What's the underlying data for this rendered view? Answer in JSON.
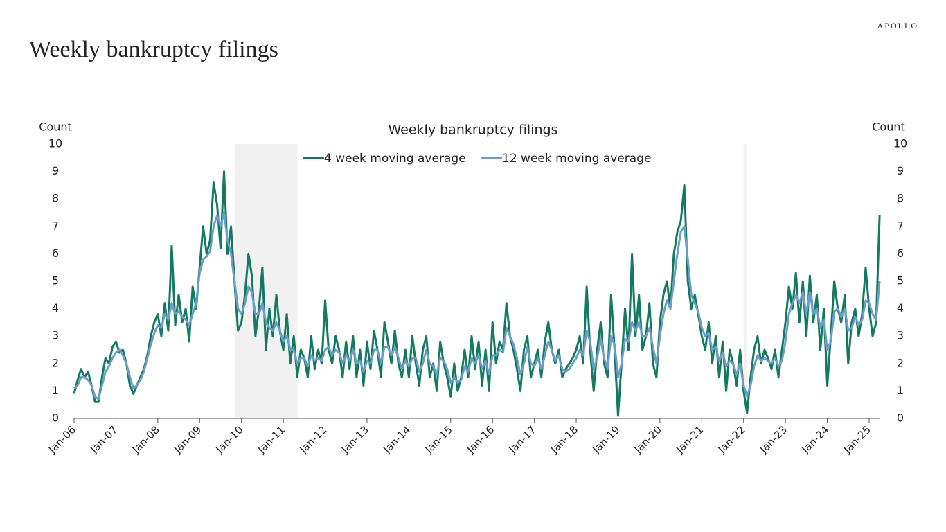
{
  "header": {
    "brand": "APOLLO",
    "title": "Weekly bankruptcy filings"
  },
  "chart_data": {
    "type": "line",
    "title": "Weekly bankruptcy filings",
    "y_label": "Count",
    "y2_label": "Count",
    "x": [
      "Jan-06",
      "Feb-06",
      "Mar-06",
      "Apr-06",
      "May-06",
      "Jun-06",
      "Jul-06",
      "Aug-06",
      "Sep-06",
      "Oct-06",
      "Nov-06",
      "Dec-06",
      "Jan-07",
      "Feb-07",
      "Mar-07",
      "Apr-07",
      "May-07",
      "Jun-07",
      "Jul-07",
      "Aug-07",
      "Sep-07",
      "Oct-07",
      "Nov-07",
      "Dec-07",
      "Jan-08",
      "Feb-08",
      "Mar-08",
      "Apr-08",
      "May-08",
      "Jun-08",
      "Jul-08",
      "Aug-08",
      "Sep-08",
      "Oct-08",
      "Nov-08",
      "Dec-08",
      "Jan-09",
      "Feb-09",
      "Mar-09",
      "Apr-09",
      "May-09",
      "Jun-09",
      "Jul-09",
      "Aug-09",
      "Sep-09",
      "Oct-09",
      "Nov-09",
      "Dec-09",
      "Jan-10",
      "Feb-10",
      "Mar-10",
      "Apr-10",
      "May-10",
      "Jun-10",
      "Jul-10",
      "Aug-10",
      "Sep-10",
      "Oct-10",
      "Nov-10",
      "Dec-10",
      "Jan-11",
      "Feb-11",
      "Mar-11",
      "Apr-11",
      "May-11",
      "Jun-11",
      "Jul-11",
      "Aug-11",
      "Sep-11",
      "Oct-11",
      "Nov-11",
      "Dec-11",
      "Jan-12",
      "Feb-12",
      "Mar-12",
      "Apr-12",
      "May-12",
      "Jun-12",
      "Jul-12",
      "Aug-12",
      "Sep-12",
      "Oct-12",
      "Nov-12",
      "Dec-12",
      "Jan-13",
      "Feb-13",
      "Mar-13",
      "Apr-13",
      "May-13",
      "Jun-13",
      "Jul-13",
      "Aug-13",
      "Sep-13",
      "Oct-13",
      "Nov-13",
      "Dec-13",
      "Jan-14",
      "Feb-14",
      "Mar-14",
      "Apr-14",
      "May-14",
      "Jun-14",
      "Jul-14",
      "Aug-14",
      "Sep-14",
      "Oct-14",
      "Nov-14",
      "Dec-14",
      "Jan-15",
      "Feb-15",
      "Mar-15",
      "Apr-15",
      "May-15",
      "Jun-15",
      "Jul-15",
      "Aug-15",
      "Sep-15",
      "Oct-15",
      "Nov-15",
      "Dec-15",
      "Jan-16",
      "Feb-16",
      "Mar-16",
      "Apr-16",
      "May-16",
      "Jun-16",
      "Jul-16",
      "Aug-16",
      "Sep-16",
      "Oct-16",
      "Nov-16",
      "Dec-16",
      "Jan-17",
      "Feb-17",
      "Mar-17",
      "Apr-17",
      "May-17",
      "Jun-17",
      "Jul-17",
      "Aug-17",
      "Sep-17",
      "Oct-17",
      "Nov-17",
      "Dec-17",
      "Jan-18",
      "Feb-18",
      "Mar-18",
      "Apr-18",
      "May-18",
      "Jun-18",
      "Jul-18",
      "Aug-18",
      "Sep-18",
      "Oct-18",
      "Nov-18",
      "Dec-18",
      "Jan-19",
      "Feb-19",
      "Mar-19",
      "Apr-19",
      "May-19",
      "Jun-19",
      "Jul-19",
      "Aug-19",
      "Sep-19",
      "Oct-19",
      "Nov-19",
      "Dec-19",
      "Jan-20",
      "Feb-20",
      "Mar-20",
      "Apr-20",
      "May-20",
      "Jun-20",
      "Jul-20",
      "Aug-20",
      "Sep-20",
      "Oct-20",
      "Nov-20",
      "Dec-20",
      "Jan-21",
      "Feb-21",
      "Mar-21",
      "Apr-21",
      "May-21",
      "Jun-21",
      "Jul-21",
      "Aug-21",
      "Sep-21",
      "Oct-21",
      "Nov-21",
      "Dec-21",
      "Jan-22",
      "Feb-22",
      "Mar-22",
      "Apr-22",
      "May-22",
      "Jun-22",
      "Jul-22",
      "Aug-22",
      "Sep-22",
      "Oct-22",
      "Nov-22",
      "Dec-22",
      "Jan-23",
      "Feb-23",
      "Mar-23",
      "Apr-23",
      "May-23",
      "Jun-23",
      "Jul-23",
      "Aug-23",
      "Sep-23",
      "Oct-23",
      "Nov-23",
      "Dec-23",
      "Jan-24",
      "Feb-24",
      "Mar-24",
      "Apr-24",
      "May-24",
      "Jun-24",
      "Jul-24",
      "Aug-24",
      "Sep-24",
      "Oct-24",
      "Nov-24",
      "Dec-24",
      "Jan-25",
      "Feb-25",
      "Mar-25",
      "Apr-25"
    ],
    "xticks": [
      "Jan-06",
      "Jan-07",
      "Jan-08",
      "Jan-09",
      "Jan-10",
      "Jan-11",
      "Jan-12",
      "Jan-13",
      "Jan-14",
      "Jan-15",
      "Jan-16",
      "Jan-17",
      "Jan-18",
      "Jan-19",
      "Jan-20",
      "Jan-21",
      "Jan-22",
      "Jan-23",
      "Jan-24",
      "Jan-25"
    ],
    "ylim": [
      0,
      10
    ],
    "yticks": [
      0,
      1,
      2,
      3,
      4,
      5,
      6,
      7,
      8,
      9,
      10
    ],
    "y2lim": [
      0,
      10
    ],
    "y2ticks": [
      0,
      1,
      2,
      3,
      4,
      5,
      6,
      7,
      8,
      9,
      10
    ],
    "shaded": [
      [
        "Nov-09",
        "May-11"
      ],
      [
        "Jan-22",
        "Feb-22"
      ]
    ],
    "series": [
      {
        "name": "4 week moving average",
        "color": "#127a5e",
        "values": [
          0.9,
          1.4,
          1.8,
          1.5,
          1.7,
          1.2,
          0.6,
          0.6,
          1.5,
          2.2,
          2.0,
          2.6,
          2.8,
          2.4,
          2.5,
          2.0,
          1.2,
          0.9,
          1.2,
          1.5,
          1.8,
          2.3,
          3.0,
          3.5,
          3.8,
          3.0,
          4.2,
          3.2,
          6.3,
          3.4,
          4.5,
          3.5,
          4.0,
          2.8,
          4.8,
          4.0,
          5.5,
          7.0,
          6.0,
          6.5,
          8.6,
          7.8,
          6.2,
          9.0,
          6.0,
          7.0,
          5.0,
          3.2,
          3.5,
          4.5,
          6.0,
          5.2,
          3.0,
          4.0,
          5.5,
          2.5,
          4.0,
          3.0,
          4.5,
          3.2,
          2.5,
          3.8,
          2.0,
          3.0,
          1.5,
          2.5,
          2.2,
          1.5,
          3.0,
          1.8,
          2.5,
          2.0,
          4.3,
          2.5,
          2.0,
          3.0,
          2.5,
          1.5,
          2.8,
          1.8,
          3.0,
          1.5,
          2.5,
          1.2,
          2.8,
          1.8,
          3.2,
          2.5,
          1.5,
          3.5,
          2.8,
          2.0,
          3.2,
          2.0,
          1.5,
          2.5,
          1.5,
          3.0,
          2.0,
          1.2,
          2.5,
          3.0,
          1.5,
          2.0,
          1.0,
          2.8,
          2.0,
          1.5,
          0.8,
          2.0,
          1.0,
          1.5,
          2.5,
          1.5,
          3.0,
          1.8,
          2.8,
          1.2,
          2.5,
          1.0,
          3.5,
          2.0,
          2.8,
          2.5,
          4.2,
          3.0,
          2.5,
          1.8,
          1.0,
          2.5,
          3.0,
          1.5,
          2.0,
          2.5,
          1.5,
          2.8,
          3.5,
          2.5,
          2.0,
          2.5,
          1.5,
          1.8,
          2.0,
          2.2,
          2.5,
          3.0,
          2.0,
          4.8,
          2.5,
          1.0,
          2.5,
          3.5,
          2.0,
          1.5,
          4.5,
          2.5,
          0.1,
          2.0,
          4.0,
          2.5,
          6.0,
          3.0,
          4.5,
          2.5,
          3.0,
          4.2,
          2.0,
          1.5,
          3.5,
          4.5,
          5.0,
          4.0,
          6.0,
          6.8,
          7.2,
          8.5,
          5.0,
          4.0,
          4.5,
          3.8,
          3.0,
          2.5,
          3.5,
          2.0,
          3.0,
          1.5,
          2.8,
          1.0,
          2.5,
          2.0,
          1.2,
          2.5,
          1.0,
          0.2,
          1.5,
          2.5,
          3.0,
          2.0,
          2.5,
          2.2,
          1.8,
          2.5,
          1.5,
          2.5,
          3.5,
          4.8,
          4.0,
          5.3,
          3.5,
          5.0,
          3.0,
          5.2,
          3.5,
          4.5,
          2.5,
          4.0,
          1.2,
          3.0,
          5.0,
          4.0,
          3.5,
          4.5,
          2.0,
          3.5,
          4.0,
          3.0,
          3.8,
          5.5,
          4.0,
          3.0,
          3.5,
          7.4
        ]
      },
      {
        "name": "12 week moving average",
        "color": "#6b9dc8",
        "values": [
          1.1,
          1.2,
          1.5,
          1.5,
          1.4,
          1.2,
          0.8,
          0.7,
          1.2,
          1.7,
          1.9,
          2.2,
          2.4,
          2.5,
          2.3,
          2.0,
          1.5,
          1.1,
          1.2,
          1.4,
          1.7,
          2.2,
          2.7,
          3.1,
          3.4,
          3.3,
          3.8,
          3.6,
          4.2,
          3.8,
          3.9,
          3.7,
          3.6,
          3.4,
          3.8,
          4.2,
          5.3,
          5.8,
          5.9,
          6.1,
          7.0,
          7.4,
          7.0,
          7.5,
          6.5,
          6.0,
          5.0,
          4.0,
          3.8,
          4.2,
          4.8,
          4.6,
          3.8,
          3.8,
          4.2,
          3.5,
          3.3,
          3.2,
          3.5,
          3.2,
          2.8,
          3.0,
          2.5,
          2.5,
          2.0,
          2.2,
          2.2,
          1.9,
          2.3,
          2.1,
          2.2,
          2.1,
          2.5,
          2.6,
          2.3,
          2.5,
          2.4,
          2.0,
          2.3,
          2.1,
          2.5,
          2.0,
          2.1,
          1.7,
          2.1,
          2.0,
          2.5,
          2.5,
          2.0,
          2.6,
          2.6,
          2.3,
          2.6,
          2.2,
          1.8,
          2.1,
          1.9,
          2.2,
          2.2,
          1.7,
          2.0,
          2.5,
          2.0,
          1.9,
          1.6,
          2.2,
          2.1,
          1.8,
          1.3,
          1.5,
          1.3,
          1.4,
          1.9,
          1.7,
          2.2,
          2.0,
          2.3,
          1.8,
          2.1,
          1.6,
          2.3,
          2.3,
          2.5,
          2.4,
          3.3,
          3.0,
          2.7,
          2.2,
          1.6,
          2.0,
          2.6,
          2.0,
          1.9,
          2.2,
          1.8,
          2.3,
          2.8,
          2.5,
          2.1,
          2.3,
          1.8,
          1.7,
          1.8,
          2.0,
          2.2,
          2.5,
          2.3,
          3.2,
          2.8,
          1.8,
          2.2,
          2.9,
          2.2,
          1.8,
          3.0,
          2.7,
          1.5,
          2.0,
          2.9,
          2.8,
          3.5,
          3.2,
          3.5,
          3.0,
          3.0,
          3.3,
          2.6,
          2.0,
          3.0,
          3.8,
          4.3,
          4.0,
          5.0,
          6.0,
          6.8,
          7.0,
          5.8,
          4.5,
          4.2,
          3.9,
          3.3,
          3.0,
          3.1,
          2.5,
          2.6,
          2.1,
          2.4,
          1.9,
          2.1,
          2.0,
          1.6,
          2.0,
          1.2,
          0.8,
          1.2,
          1.9,
          2.3,
          2.1,
          2.2,
          2.1,
          2.0,
          2.2,
          1.9,
          2.1,
          2.8,
          3.8,
          4.2,
          4.5,
          4.2,
          4.6,
          3.8,
          4.6,
          3.8,
          4.0,
          3.3,
          3.6,
          2.5,
          2.8,
          3.9,
          4.0,
          3.7,
          4.0,
          3.2,
          3.3,
          3.7,
          3.4,
          3.6,
          4.3,
          4.2,
          3.8,
          3.6,
          5.0
        ]
      }
    ]
  }
}
